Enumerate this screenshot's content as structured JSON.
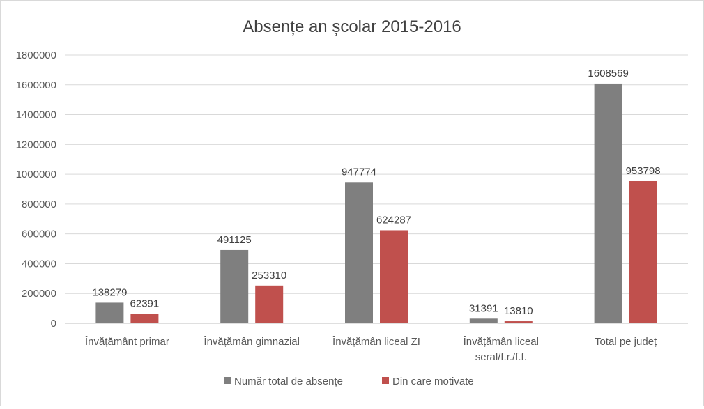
{
  "chart_data": {
    "type": "bar",
    "title": "Absențe an școlar 2015-2016",
    "categories": [
      [
        "Învățământ primar"
      ],
      [
        "Învățămân gimnazial"
      ],
      [
        "Învățămân liceal ZI"
      ],
      [
        "Învățămân liceal",
        "seral/f.r./f.f."
      ],
      [
        "Total pe județ"
      ]
    ],
    "series": [
      {
        "name": "Număr  total de absențe",
        "color": "#7f7f7f",
        "values": [
          138279,
          491125,
          947774,
          31391,
          1608569
        ]
      },
      {
        "name": "Din care motivate",
        "color": "#c0504d",
        "values": [
          62391,
          253310,
          624287,
          13810,
          953798
        ]
      }
    ],
    "ylim": [
      0,
      1800000
    ],
    "yticks": [
      0,
      200000,
      400000,
      600000,
      800000,
      1000000,
      1200000,
      1400000,
      1600000,
      1800000
    ],
    "grid": true,
    "legend_position": "bottom",
    "data_labels": true
  }
}
